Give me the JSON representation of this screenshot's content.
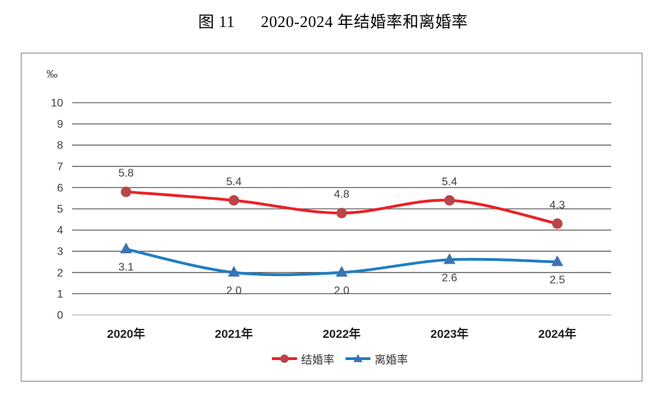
{
  "title": "图 11      2020-2024 年结婚率和离婚率",
  "chart_data": {
    "type": "line",
    "title": "图 11 2020-2024 年结婚率和离婚率",
    "unit_label": "‰",
    "categories": [
      "2020年",
      "2021年",
      "2022年",
      "2023年",
      "2024年"
    ],
    "series": [
      {
        "name": "结婚率",
        "values": [
          5.8,
          5.4,
          4.8,
          5.4,
          4.3
        ],
        "labels": [
          "5.8",
          "5.4",
          "4.8",
          "5.4",
          "4.3"
        ],
        "line_color": "#ed1f24",
        "marker_color": "#b8454a",
        "marker": "circle",
        "label_position": "above",
        "smooth": true
      },
      {
        "name": "离婚率",
        "values": [
          3.1,
          2.0,
          2.0,
          2.6,
          2.5
        ],
        "labels": [
          "3.1",
          "2.0",
          "2.0",
          "2.6",
          "2.5"
        ],
        "line_color": "#1f7ec2",
        "marker_color": "#3e72b0",
        "marker": "triangle",
        "label_position": "below",
        "smooth": true
      }
    ],
    "ylim": [
      0,
      10
    ],
    "yticks": [
      "0",
      "1",
      "2",
      "3",
      "4",
      "5",
      "6",
      "7",
      "8",
      "9",
      "10"
    ],
    "grid": true,
    "legend_position": "bottom"
  },
  "colors": {
    "gridline": "#595959",
    "zero_line": "#b3b3b3",
    "tick_label": "#3f3f3f",
    "data_label": "#3f3f3f",
    "category_label": "#1f1f1f",
    "chart_border": "#7f7f7f",
    "background": "#ffffff"
  }
}
